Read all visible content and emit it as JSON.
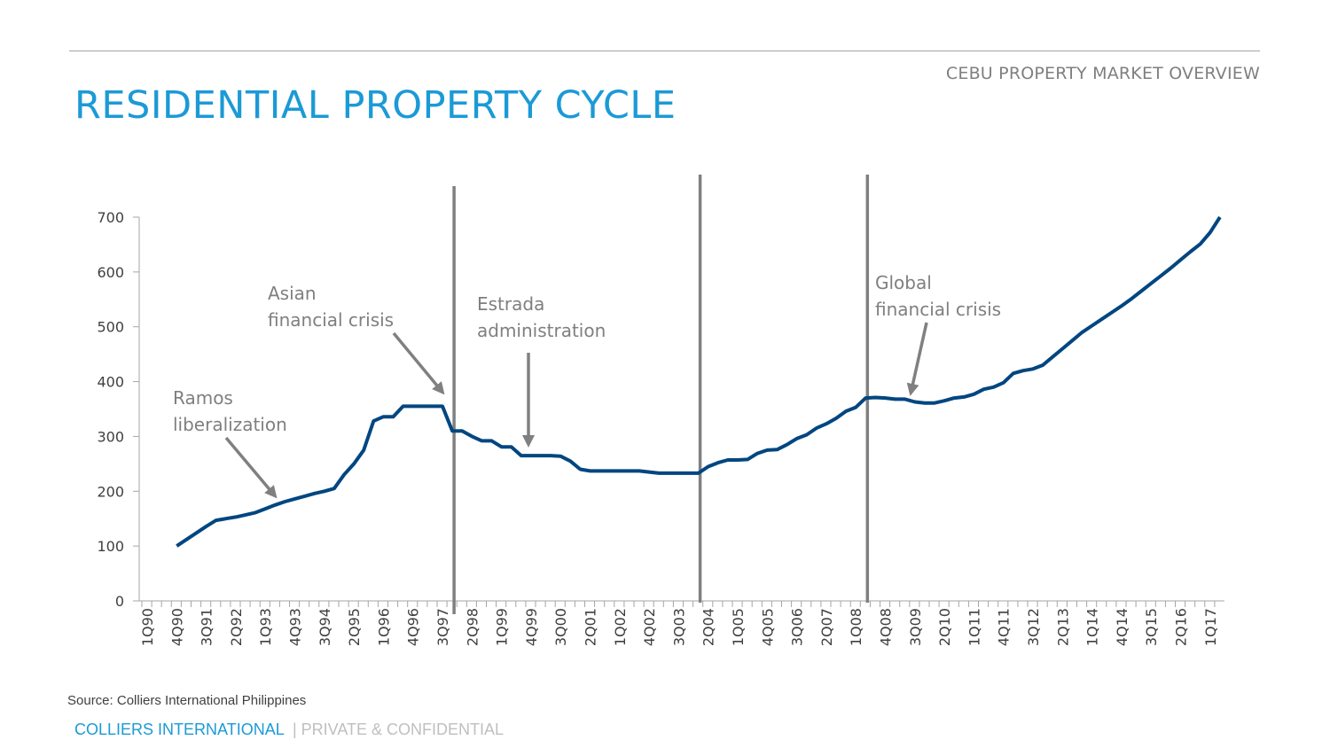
{
  "header": {
    "section": "CEBU PROPERTY MARKET OVERVIEW",
    "title": "RESIDENTIAL PROPERTY CYCLE"
  },
  "footer": {
    "brand": "COLLIERS INTERNATIONAL",
    "confidential": " | PRIVATE & CONFIDENTIAL",
    "source": "Source: Colliers International Philippines"
  },
  "chart_data": {
    "type": "line",
    "title": "",
    "xlabel": "",
    "ylabel": "",
    "ylim": [
      0,
      700
    ],
    "yticks": [
      0,
      100,
      200,
      300,
      400,
      500,
      600,
      700
    ],
    "grid": false,
    "legend": "none",
    "line_color": "#004680",
    "marker_color": "#808080",
    "xtick_labels": [
      "1Q90",
      "4Q90",
      "3Q91",
      "2Q92",
      "1Q93",
      "4Q93",
      "3Q94",
      "2Q95",
      "1Q96",
      "4Q96",
      "3Q97",
      "2Q98",
      "1Q99",
      "4Q99",
      "3Q00",
      "2Q01",
      "1Q02",
      "4Q02",
      "3Q03",
      "2Q04",
      "1Q05",
      "4Q05",
      "3Q06",
      "2Q07",
      "1Q08",
      "4Q08",
      "3Q09",
      "2Q10",
      "1Q11",
      "4Q11",
      "3Q12",
      "2Q13",
      "1Q14",
      "4Q14",
      "3Q15",
      "2Q16",
      "1Q17"
    ],
    "x": [
      "4Q90",
      "1Q91",
      "2Q91",
      "3Q91",
      "4Q91",
      "1Q92",
      "2Q92",
      "3Q92",
      "4Q92",
      "1Q93",
      "2Q93",
      "3Q93",
      "4Q93",
      "1Q94",
      "2Q94",
      "3Q94",
      "4Q94",
      "1Q95",
      "2Q95",
      "3Q95",
      "4Q95",
      "1Q96",
      "2Q96",
      "3Q96",
      "4Q96",
      "1Q97",
      "2Q97",
      "3Q97",
      "4Q97",
      "1Q98",
      "2Q98",
      "3Q98",
      "4Q98",
      "1Q99",
      "2Q99",
      "3Q99",
      "4Q99",
      "1Q00",
      "2Q00",
      "3Q00",
      "4Q00",
      "1Q01",
      "2Q01",
      "3Q01",
      "4Q01",
      "1Q02",
      "2Q02",
      "3Q02",
      "4Q02",
      "1Q03",
      "2Q03",
      "3Q03",
      "4Q03",
      "1Q04",
      "2Q04",
      "3Q04",
      "4Q04",
      "1Q05",
      "2Q05",
      "3Q05",
      "4Q05",
      "1Q06",
      "2Q06",
      "3Q06",
      "4Q06",
      "1Q07",
      "2Q07",
      "3Q07",
      "4Q07",
      "1Q08",
      "2Q08",
      "3Q08",
      "4Q08",
      "1Q09",
      "2Q09",
      "3Q09",
      "4Q09",
      "1Q10",
      "2Q10",
      "3Q10",
      "4Q10",
      "1Q11",
      "2Q11",
      "3Q11",
      "4Q11",
      "1Q12",
      "2Q12",
      "3Q12",
      "4Q12",
      "1Q13",
      "2Q13",
      "3Q13",
      "4Q13",
      "1Q14",
      "2Q14",
      "3Q14",
      "4Q14",
      "1Q15",
      "2Q15",
      "3Q15",
      "4Q15",
      "1Q16",
      "2Q16",
      "3Q16",
      "4Q16",
      "1Q17",
      "2Q17"
    ],
    "values": [
      100,
      112,
      124,
      136,
      147,
      150,
      153,
      157,
      161,
      168,
      175,
      181,
      186,
      191,
      196,
      200,
      205,
      230,
      250,
      275,
      328,
      336,
      336,
      355,
      355,
      355,
      355,
      355,
      310,
      310,
      300,
      292,
      292,
      281,
      281,
      265,
      265,
      265,
      265,
      264,
      255,
      240,
      237,
      237,
      237,
      237,
      237,
      237,
      235,
      233,
      233,
      233,
      233,
      233,
      245,
      252,
      257,
      257,
      258,
      269,
      275,
      276,
      285,
      296,
      303,
      315,
      323,
      333,
      346,
      353,
      370,
      371,
      370,
      368,
      368,
      363,
      361,
      361,
      365,
      370,
      372,
      377,
      386,
      390,
      398,
      415,
      420,
      423,
      430,
      445,
      460,
      475,
      490,
      502,
      514,
      526,
      538,
      551,
      565,
      579,
      593,
      607,
      622,
      637,
      651,
      672,
      700
    ],
    "period_markers": [
      "4Q97",
      "1Q04",
      "2Q08"
    ],
    "annotations": [
      {
        "lines": [
          "Ramos",
          "liberalization"
        ]
      },
      {
        "lines": [
          "Asian",
          "financial crisis"
        ]
      },
      {
        "lines": [
          "Estrada",
          "administration"
        ]
      },
      {
        "lines": [
          "Global",
          "financial crisis"
        ]
      }
    ]
  }
}
